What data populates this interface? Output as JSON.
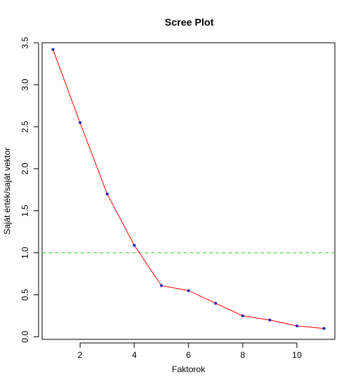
{
  "chart_data": {
    "type": "line",
    "title": "Scree Plot",
    "xlabel": "Faktorok",
    "ylabel": "Saját érték/saját vektor",
    "x": [
      1,
      2,
      3,
      4,
      5,
      6,
      7,
      8,
      9,
      10,
      11
    ],
    "series": [
      {
        "values": [
          3.42,
          2.55,
          1.7,
          1.09,
          0.61,
          0.55,
          0.4,
          0.25,
          0.2,
          0.13,
          0.1
        ]
      }
    ],
    "xlim": [
      0.6,
      11.4
    ],
    "ylim": [
      -0.03,
      3.5
    ],
    "xticks": [
      "2",
      "4",
      "6",
      "8",
      "10"
    ],
    "yticks": [
      "0.0",
      "0.5",
      "1.0",
      "1.5",
      "2.0",
      "2.5",
      "3.0",
      "3.5"
    ],
    "reference_line": {
      "y": 1.0,
      "style": "dashed",
      "color": "#33cc33"
    },
    "line_color": "#ff0000",
    "point_color": "#2222aa",
    "grid": false,
    "legend": "none"
  }
}
